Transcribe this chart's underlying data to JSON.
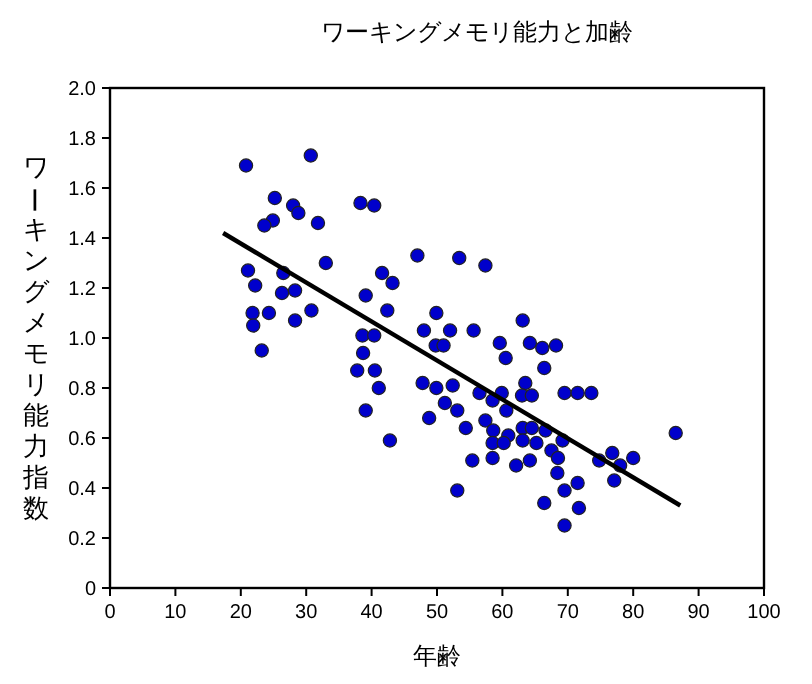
{
  "chart_data": {
    "type": "scatter",
    "title": "ワーキングメモリ能力と加齢",
    "xlabel": "年齢",
    "ylabel": "ワーキングメモリ能力指数",
    "xlim": [
      0,
      100
    ],
    "ylim": [
      0,
      2.0
    ],
    "xticks": [
      0,
      10,
      20,
      30,
      40,
      50,
      60,
      70,
      80,
      90,
      100
    ],
    "yticks": [
      0,
      {
        "value": 0.2,
        "label": "0.2"
      },
      {
        "value": 0.4,
        "label": "0.4"
      },
      {
        "value": 0.6,
        "label": "0.6"
      },
      {
        "value": 0.8,
        "label": "0.8"
      },
      {
        "value": 1,
        "label": "1.0"
      },
      {
        "value": 1.2,
        "label": "1.2"
      },
      {
        "value": 1.4,
        "label": "1.4"
      },
      {
        "value": 1.6,
        "label": "1.6"
      },
      {
        "value": 1.8,
        "label": "1.8"
      },
      {
        "value": 2,
        "label": "2.0"
      }
    ],
    "grid": false,
    "legend": false,
    "marker": "circle",
    "series": [
      {
        "type": "scatter",
        "color": "#0000cc",
        "x": [
          20.8,
          30.7,
          25.2,
          28.0,
          28.8,
          24.9,
          23.6,
          31.8,
          33.0,
          21.1,
          22.2,
          26.5,
          26.3,
          28.3,
          21.8,
          24.3,
          21.9,
          30.8,
          28.3,
          23.2,
          38.3,
          40.4,
          47.0,
          41.6,
          43.2,
          39.1,
          42.4,
          38.6,
          40.4,
          49.9,
          48.0,
          38.7,
          49.8,
          51.0,
          37.8,
          40.5,
          41.1,
          47.8,
          49.9,
          39.1,
          48.8,
          42.8,
          53.4,
          57.4,
          52.0,
          55.6,
          63.1,
          59.6,
          64.2,
          66.1,
          68.2,
          60.5,
          66.4,
          52.4,
          56.5,
          59.9,
          58.5,
          63.5,
          63.0,
          64.5,
          69.5,
          71.5,
          73.6,
          51.2,
          53.1,
          60.6,
          54.4,
          57.4,
          58.6,
          60.9,
          63.1,
          64.5,
          66.6,
          58.5,
          60.2,
          63.1,
          65.2,
          69.2,
          67.5,
          68.5,
          55.4,
          58.5,
          62.1,
          64.2,
          74.8,
          76.8,
          78.0,
          80.0,
          86.5,
          77.1,
          68.4,
          71.5,
          53.1,
          69.5,
          66.4,
          71.7,
          69.5
        ],
        "values": [
          1.69,
          1.73,
          1.56,
          1.53,
          1.5,
          1.47,
          1.45,
          1.46,
          1.3,
          1.27,
          1.21,
          1.26,
          1.18,
          1.19,
          1.1,
          1.1,
          1.05,
          1.11,
          1.07,
          0.95,
          1.54,
          1.53,
          1.33,
          1.26,
          1.22,
          1.17,
          1.11,
          1.01,
          1.01,
          1.1,
          1.03,
          0.94,
          0.97,
          0.97,
          0.87,
          0.87,
          0.8,
          0.82,
          0.8,
          0.71,
          0.68,
          0.59,
          1.32,
          1.29,
          1.03,
          1.03,
          1.07,
          0.98,
          0.98,
          0.96,
          0.97,
          0.92,
          0.88,
          0.81,
          0.78,
          0.78,
          0.75,
          0.82,
          0.77,
          0.77,
          0.78,
          0.78,
          0.78,
          0.74,
          0.71,
          0.71,
          0.64,
          0.67,
          0.63,
          0.61,
          0.64,
          0.64,
          0.63,
          0.58,
          0.58,
          0.59,
          0.58,
          0.59,
          0.55,
          0.52,
          0.51,
          0.52,
          0.49,
          0.51,
          0.51,
          0.54,
          0.49,
          0.52,
          0.62,
          0.43,
          0.46,
          0.42,
          0.39,
          0.39,
          0.34,
          0.32,
          0.25
        ]
      },
      {
        "type": "line",
        "color": "#000000",
        "marker": "none",
        "line_style": "solid",
        "x": [
          17.3,
          87.2
        ],
        "values": [
          1.42,
          0.33
        ]
      }
    ]
  }
}
